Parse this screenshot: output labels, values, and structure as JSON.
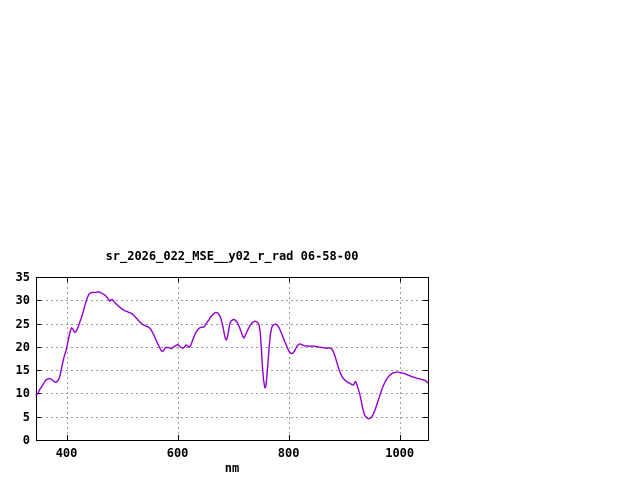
{
  "window": {
    "background_color": "#ffffff",
    "content": "gnuplot spectrum plot in lower-left area, rest blank"
  },
  "chart_data": {
    "type": "line",
    "title": "sr_2026_022_MSE__y02_r_rad 06-58-00",
    "xlabel": "nm",
    "ylabel": "",
    "xlim": [
      345,
      1051
    ],
    "ylim": [
      0,
      35
    ],
    "grid": true,
    "legend": "none",
    "line_color": "#9400d3",
    "grid_color": "#9e9e9e",
    "axis_color": "#000000",
    "x_ticks": [
      {
        "value": 400,
        "label": "400"
      },
      {
        "value": 600,
        "label": "600"
      },
      {
        "value": 800,
        "label": "800"
      },
      {
        "value": 1000,
        "label": "1000"
      }
    ],
    "y_ticks": [
      {
        "value": 0,
        "label": "0"
      },
      {
        "value": 5,
        "label": "5"
      },
      {
        "value": 10,
        "label": "10"
      },
      {
        "value": 15,
        "label": "15"
      },
      {
        "value": 20,
        "label": "20"
      },
      {
        "value": 25,
        "label": "25"
      },
      {
        "value": 30,
        "label": "30"
      },
      {
        "value": 35,
        "label": "35"
      }
    ],
    "series": [
      {
        "name": "sr_2026_022_MSE__y02_r_rad",
        "points": [
          [
            345,
            9.7
          ],
          [
            347,
            9.8
          ],
          [
            349,
            10.1
          ],
          [
            351,
            10.7
          ],
          [
            354,
            11.2
          ],
          [
            357,
            11.8
          ],
          [
            360,
            12.4
          ],
          [
            363,
            12.9
          ],
          [
            366,
            13.1
          ],
          [
            369,
            13.2
          ],
          [
            372,
            13.1
          ],
          [
            375,
            12.8
          ],
          [
            378,
            12.5
          ],
          [
            381,
            12.4
          ],
          [
            384,
            12.7
          ],
          [
            387,
            13.3
          ],
          [
            389,
            14.2
          ],
          [
            391,
            15.4
          ],
          [
            393,
            16.6
          ],
          [
            395,
            17.6
          ],
          [
            397,
            18.4
          ],
          [
            399,
            19.2
          ],
          [
            401,
            20.2
          ],
          [
            403,
            21.4
          ],
          [
            405,
            22.5
          ],
          [
            407,
            23.5
          ],
          [
            409,
            24.1
          ],
          [
            411,
            23.9
          ],
          [
            413,
            23.4
          ],
          [
            415,
            23.1
          ],
          [
            417,
            23.3
          ],
          [
            419,
            23.7
          ],
          [
            421,
            24.3
          ],
          [
            423,
            25.0
          ],
          [
            425,
            25.7
          ],
          [
            427,
            26.3
          ],
          [
            429,
            27.1
          ],
          [
            431,
            28.0
          ],
          [
            433,
            28.9
          ],
          [
            435,
            29.7
          ],
          [
            437,
            30.4
          ],
          [
            439,
            31.0
          ],
          [
            441,
            31.4
          ],
          [
            444,
            31.6
          ],
          [
            447,
            31.7
          ],
          [
            450,
            31.7
          ],
          [
            453,
            31.7
          ],
          [
            456,
            31.8
          ],
          [
            459,
            31.8
          ],
          [
            462,
            31.6
          ],
          [
            465,
            31.4
          ],
          [
            468,
            31.2
          ],
          [
            471,
            30.9
          ],
          [
            474,
            30.5
          ],
          [
            476,
            30.1
          ],
          [
            478,
            29.8
          ],
          [
            480,
            30.1
          ],
          [
            482,
            30.2
          ],
          [
            485,
            29.8
          ],
          [
            488,
            29.4
          ],
          [
            491,
            29.0
          ],
          [
            494,
            28.7
          ],
          [
            497,
            28.4
          ],
          [
            500,
            28.1
          ],
          [
            503,
            27.9
          ],
          [
            506,
            27.7
          ],
          [
            509,
            27.6
          ],
          [
            512,
            27.4
          ],
          [
            515,
            27.3
          ],
          [
            518,
            27.1
          ],
          [
            521,
            26.8
          ],
          [
            524,
            26.4
          ],
          [
            527,
            26.0
          ],
          [
            530,
            25.6
          ],
          [
            533,
            25.2
          ],
          [
            536,
            24.9
          ],
          [
            539,
            24.7
          ],
          [
            542,
            24.5
          ],
          [
            545,
            24.4
          ],
          [
            548,
            24.2
          ],
          [
            551,
            23.9
          ],
          [
            554,
            23.3
          ],
          [
            557,
            22.6
          ],
          [
            560,
            21.8
          ],
          [
            563,
            21.0
          ],
          [
            566,
            20.2
          ],
          [
            569,
            19.5
          ],
          [
            571,
            19.1
          ],
          [
            573,
            19.0
          ],
          [
            575,
            19.2
          ],
          [
            577,
            19.7
          ],
          [
            579,
            19.9
          ],
          [
            581,
            19.8
          ],
          [
            583,
            19.9
          ],
          [
            585,
            19.8
          ],
          [
            587,
            19.7
          ],
          [
            589,
            19.6
          ],
          [
            591,
            19.8
          ],
          [
            594,
            20.1
          ],
          [
            597,
            20.3
          ],
          [
            600,
            20.5
          ],
          [
            603,
            20.2
          ],
          [
            606,
            19.9
          ],
          [
            609,
            19.7
          ],
          [
            612,
            19.9
          ],
          [
            615,
            20.4
          ],
          [
            618,
            20.2
          ],
          [
            621,
            19.9
          ],
          [
            624,
            20.4
          ],
          [
            627,
            21.4
          ],
          [
            630,
            22.3
          ],
          [
            633,
            23.1
          ],
          [
            636,
            23.6
          ],
          [
            639,
            24.0
          ],
          [
            642,
            24.2
          ],
          [
            645,
            24.2
          ],
          [
            648,
            24.3
          ],
          [
            651,
            24.9
          ],
          [
            654,
            25.4
          ],
          [
            657,
            25.9
          ],
          [
            660,
            26.5
          ],
          [
            663,
            26.9
          ],
          [
            666,
            27.2
          ],
          [
            669,
            27.4
          ],
          [
            672,
            27.3
          ],
          [
            675,
            26.9
          ],
          [
            678,
            26.1
          ],
          [
            681,
            24.7
          ],
          [
            684,
            22.9
          ],
          [
            686,
            21.8
          ],
          [
            688,
            21.5
          ],
          [
            690,
            22.2
          ],
          [
            692,
            23.6
          ],
          [
            694,
            25.0
          ],
          [
            696,
            25.5
          ],
          [
            699,
            25.8
          ],
          [
            702,
            25.9
          ],
          [
            705,
            25.6
          ],
          [
            708,
            25.1
          ],
          [
            711,
            24.3
          ],
          [
            714,
            23.4
          ],
          [
            717,
            22.4
          ],
          [
            719,
            21.9
          ],
          [
            721,
            22.2
          ],
          [
            724,
            23.0
          ],
          [
            727,
            23.8
          ],
          [
            730,
            24.5
          ],
          [
            733,
            25.0
          ],
          [
            736,
            25.3
          ],
          [
            739,
            25.5
          ],
          [
            742,
            25.4
          ],
          [
            745,
            25.1
          ],
          [
            747,
            24.6
          ],
          [
            749,
            23.0
          ],
          [
            751,
            19.5
          ],
          [
            753,
            15.5
          ],
          [
            755,
            12.8
          ],
          [
            757,
            11.2
          ],
          [
            759,
            11.5
          ],
          [
            761,
            14.0
          ],
          [
            763,
            17.0
          ],
          [
            765,
            20.0
          ],
          [
            767,
            22.5
          ],
          [
            769,
            23.9
          ],
          [
            771,
            24.5
          ],
          [
            774,
            24.8
          ],
          [
            777,
            24.9
          ],
          [
            780,
            24.6
          ],
          [
            783,
            24.1
          ],
          [
            786,
            23.2
          ],
          [
            789,
            22.4
          ],
          [
            792,
            21.4
          ],
          [
            795,
            20.6
          ],
          [
            798,
            19.7
          ],
          [
            801,
            19.0
          ],
          [
            804,
            18.6
          ],
          [
            807,
            18.6
          ],
          [
            810,
            19.0
          ],
          [
            813,
            19.7
          ],
          [
            816,
            20.3
          ],
          [
            819,
            20.6
          ],
          [
            822,
            20.6
          ],
          [
            825,
            20.4
          ],
          [
            829,
            20.2
          ],
          [
            833,
            20.2
          ],
          [
            838,
            20.1
          ],
          [
            843,
            20.2
          ],
          [
            848,
            20.1
          ],
          [
            853,
            20.0
          ],
          [
            858,
            19.9
          ],
          [
            863,
            19.8
          ],
          [
            868,
            19.7
          ],
          [
            873,
            19.8
          ],
          [
            877,
            19.6
          ],
          [
            880,
            19.1
          ],
          [
            883,
            18.2
          ],
          [
            886,
            17.0
          ],
          [
            889,
            15.8
          ],
          [
            892,
            14.7
          ],
          [
            895,
            13.9
          ],
          [
            898,
            13.3
          ],
          [
            902,
            12.8
          ],
          [
            906,
            12.4
          ],
          [
            910,
            12.2
          ],
          [
            914,
            11.9
          ],
          [
            917,
            11.8
          ],
          [
            919,
            12.4
          ],
          [
            921,
            12.5
          ],
          [
            923,
            11.9
          ],
          [
            925,
            11.1
          ],
          [
            928,
            9.9
          ],
          [
            931,
            8.2
          ],
          [
            934,
            6.5
          ],
          [
            937,
            5.3
          ],
          [
            940,
            4.8
          ],
          [
            943,
            4.6
          ],
          [
            946,
            4.6
          ],
          [
            949,
            4.9
          ],
          [
            952,
            5.4
          ],
          [
            955,
            6.3
          ],
          [
            958,
            7.3
          ],
          [
            961,
            8.4
          ],
          [
            964,
            9.5
          ],
          [
            967,
            10.6
          ],
          [
            970,
            11.5
          ],
          [
            973,
            12.3
          ],
          [
            976,
            13.0
          ],
          [
            979,
            13.5
          ],
          [
            982,
            13.9
          ],
          [
            985,
            14.2
          ],
          [
            988,
            14.4
          ],
          [
            992,
            14.5
          ],
          [
            996,
            14.6
          ],
          [
            1000,
            14.5
          ],
          [
            1004,
            14.4
          ],
          [
            1008,
            14.3
          ],
          [
            1012,
            14.1
          ],
          [
            1016,
            13.9
          ],
          [
            1020,
            13.7
          ],
          [
            1024,
            13.5
          ],
          [
            1028,
            13.4
          ],
          [
            1032,
            13.2
          ],
          [
            1036,
            13.1
          ],
          [
            1040,
            13.0
          ],
          [
            1043,
            12.9
          ],
          [
            1046,
            12.8
          ],
          [
            1048,
            12.6
          ],
          [
            1050,
            12.3
          ]
        ]
      }
    ]
  }
}
